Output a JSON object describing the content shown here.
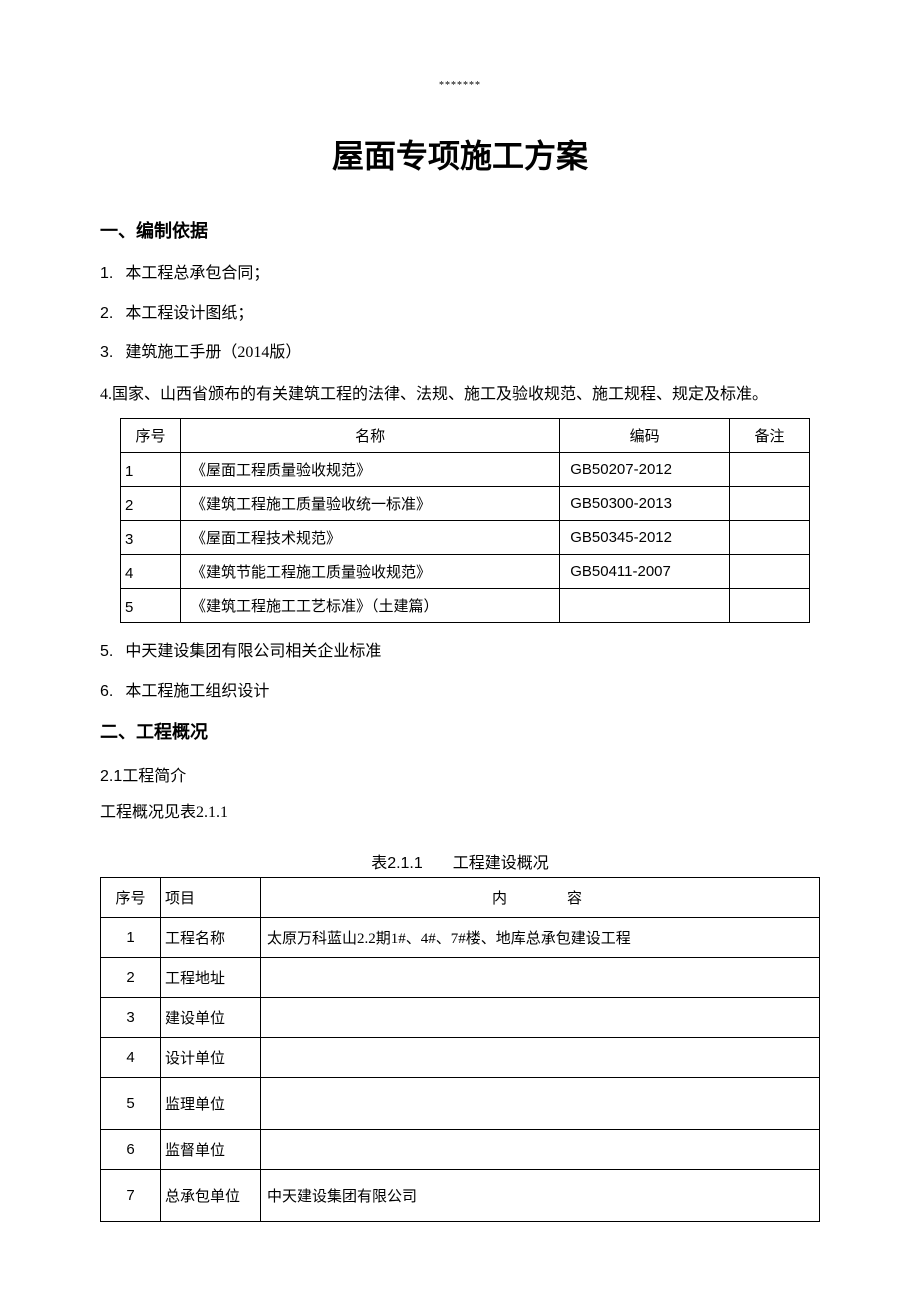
{
  "header_stars": "*******",
  "main_title": "屋面专项施工方案",
  "section1": {
    "heading": "一、编制依据",
    "items": [
      {
        "num": "1.",
        "text": "本工程总承包合同；"
      },
      {
        "num": "2.",
        "text": "本工程设计图纸；"
      },
      {
        "num": "3.",
        "text": "建筑施工手册（2014版）"
      }
    ],
    "item4": "4.国家、山西省颁布的有关建筑工程的法律、法规、施工及验收规范、施工规程、规定及标准。",
    "items_after": [
      {
        "num": "5.",
        "text": "中天建设集团有限公司相关企业标准"
      },
      {
        "num": "6.",
        "text": "本工程施工组织设计"
      }
    ]
  },
  "standards_table": {
    "headers": {
      "seq": "序号",
      "name": "名称",
      "code": "编码",
      "note": "备注"
    },
    "rows": [
      {
        "seq": "1",
        "name": "《屋面工程质量验收规范》",
        "code": "GB50207-2012",
        "note": ""
      },
      {
        "seq": "2",
        "name": "《建筑工程施工质量验收统一标准》",
        "code": "GB50300-2013",
        "note": ""
      },
      {
        "seq": "3",
        "name": "《屋面工程技术规范》",
        "code": "GB50345-2012",
        "note": ""
      },
      {
        "seq": "4",
        "name": "《建筑节能工程施工质量验收规范》",
        "code": "GB50411-2007",
        "note": ""
      },
      {
        "seq": "5",
        "name": "《建筑工程施工工艺标准》（土建篇）",
        "code": "",
        "note": ""
      }
    ]
  },
  "section2": {
    "heading": "二、工程概况",
    "sub1": "2.1工程简介",
    "sub2": "工程概况见表2.1.1",
    "caption_num": "表2.1.1",
    "caption_text": "工程建设概况"
  },
  "overview_table": {
    "headers": {
      "seq": "序号",
      "item": "项目",
      "content": "内容"
    },
    "rows": [
      {
        "seq": "1",
        "item": "工程名称",
        "content": "太原万科蓝山2.2期1#、4#、7#楼、地库总承包建设工程"
      },
      {
        "seq": "2",
        "item": "工程地址",
        "content": ""
      },
      {
        "seq": "3",
        "item": "建设单位",
        "content": ""
      },
      {
        "seq": "4",
        "item": "设计单位",
        "content": ""
      },
      {
        "seq": "5",
        "item": "监理单位",
        "content": ""
      },
      {
        "seq": "6",
        "item": "监督单位",
        "content": ""
      },
      {
        "seq": "7",
        "item": "总承包单位",
        "content": "中天建设集团有限公司"
      }
    ]
  },
  "colors": {
    "text": "#000000",
    "background": "#ffffff",
    "border": "#000000"
  }
}
